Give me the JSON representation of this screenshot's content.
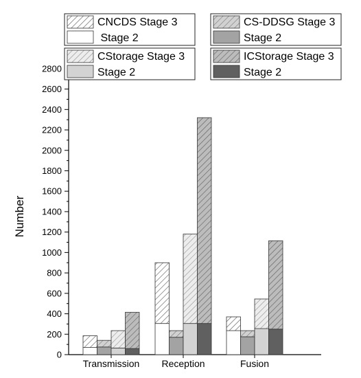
{
  "chart_data": {
    "type": "bar",
    "subtype": "stacked-grouped",
    "title": "",
    "xlabel": "",
    "ylabel": "Number",
    "ylim": [
      0,
      2900
    ],
    "ytick_step": 200,
    "ytick_max": 2800,
    "grid": false,
    "legend_placement": "top",
    "categories": [
      "Transmission",
      "Reception",
      "Fusion"
    ],
    "series": [
      {
        "name": "CNCDS",
        "colors": {
          "stage2": "#ffffff",
          "stage3": "#ffffff"
        },
        "stage2": [
          70,
          305,
          235
        ],
        "stage3": [
          115,
          595,
          135
        ]
      },
      {
        "name": "CS-DDSG",
        "colors": {
          "stage2": "#a3a3a3",
          "stage3": "#9a9a9a"
        },
        "stage2": [
          75,
          170,
          175
        ],
        "stage3": [
          65,
          65,
          60
        ]
      },
      {
        "name": "CStorage",
        "colors": {
          "stage2": "#d3d3d3",
          "stage3": "#d8d8d8"
        },
        "stage2": [
          65,
          305,
          255
        ],
        "stage3": [
          170,
          875,
          290
        ]
      },
      {
        "name": "ICStorage",
        "colors": {
          "stage2": "#606060",
          "stage3": "#6a6a6a"
        },
        "stage2": [
          60,
          305,
          250
        ],
        "stage3": [
          355,
          2015,
          865
        ]
      }
    ],
    "legend": [
      {
        "stage3_label": "CNCDS Stage 3",
        "stage2_label": " Stage 2"
      },
      {
        "stage3_label": "CS-DDSG Stage 3",
        "stage2_label": "Stage 2"
      },
      {
        "stage3_label": "CStorage Stage 3",
        "stage2_label": "Stage 2"
      },
      {
        "stage3_label": "ICStorage Stage 3",
        "stage2_label": "Stage 2"
      }
    ]
  }
}
